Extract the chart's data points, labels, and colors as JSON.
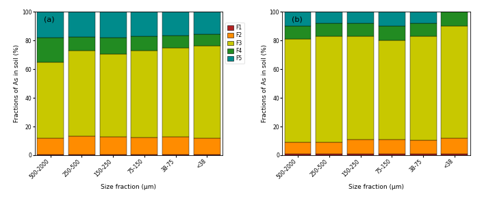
{
  "categories": [
    "500-2000",
    "250-500",
    "150-250",
    "75-150",
    "38-75",
    "<38"
  ],
  "xlabel": "Size fraction (μm)",
  "ylabel": "Fractions of As in soil (%)",
  "ylim": [
    0,
    100
  ],
  "yticks": [
    0,
    20,
    40,
    60,
    80,
    100
  ],
  "colors": {
    "F1": "#b22222",
    "F2": "#ff8c00",
    "F3": "#c8c800",
    "F4": "#228b22",
    "F5": "#008b8b"
  },
  "legend_labels": [
    "F1",
    "F2",
    "F3",
    "F4",
    "F5"
  ],
  "panel_a": {
    "label": "(a)",
    "F1": [
      0.5,
      0.5,
      0.5,
      0.5,
      0.5,
      0.5
    ],
    "F2": [
      11.5,
      13.0,
      12.5,
      12.0,
      12.5,
      11.5
    ],
    "F3": [
      53.0,
      59.5,
      57.5,
      60.5,
      62.0,
      64.5
    ],
    "F4": [
      17.0,
      9.5,
      11.5,
      10.0,
      8.5,
      8.0
    ],
    "F5": [
      18.0,
      17.5,
      18.0,
      17.0,
      16.5,
      15.5
    ]
  },
  "panel_b": {
    "label": "(b)",
    "F1": [
      1.0,
      1.0,
      1.0,
      1.0,
      1.0,
      1.0
    ],
    "F2": [
      8.0,
      8.0,
      10.0,
      10.0,
      9.5,
      11.0
    ],
    "F3": [
      72.0,
      74.0,
      72.0,
      69.0,
      72.5,
      78.0
    ],
    "F4": [
      9.0,
      9.0,
      9.0,
      10.0,
      9.0,
      10.0
    ],
    "F5": [
      10.0,
      8.0,
      8.0,
      10.0,
      8.0,
      0.0
    ]
  },
  "figsize": [
    7.23,
    2.91
  ],
  "dpi": 100
}
